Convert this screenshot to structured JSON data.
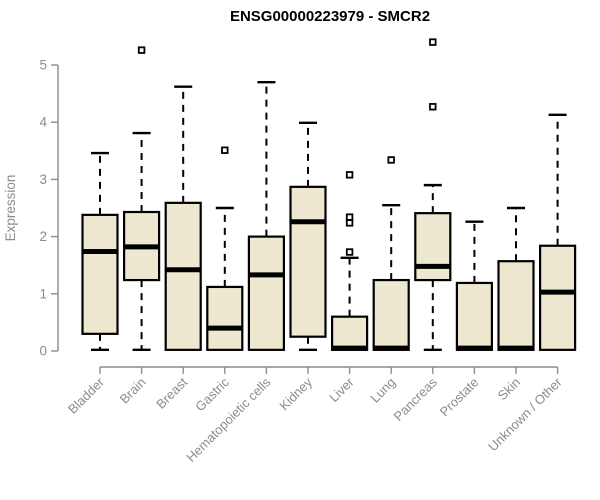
{
  "title": "ENSG00000223979 - SMCR2",
  "chart_data": {
    "type": "boxplot",
    "title": "ENSG00000223979 - SMCR2",
    "xlabel": "",
    "ylabel": "Expression",
    "ylim": [
      0,
      5.45
    ],
    "yticks": [
      0,
      1,
      2,
      3,
      4,
      5
    ],
    "grid": false,
    "legend": false,
    "x_tick_rotation_deg": 45,
    "categories": [
      "Bladder",
      "Brain",
      "Breast",
      "Gastric",
      "Hematopoietic cells",
      "Kidney",
      "Liver",
      "Lung",
      "Pancreas",
      "Prostate",
      "Skin",
      "Unknown / Other"
    ],
    "boxes": [
      {
        "category": "Bladder",
        "min": 0.02,
        "q1": 0.3,
        "median": 1.74,
        "q3": 2.38,
        "max": 3.46,
        "outliers": []
      },
      {
        "category": "Brain",
        "min": 0.02,
        "q1": 1.24,
        "median": 1.82,
        "q3": 2.43,
        "max": 3.81,
        "outliers": [
          5.26
        ]
      },
      {
        "category": "Breast",
        "min": 0.0,
        "q1": 0.02,
        "median": 1.42,
        "q3": 2.59,
        "max": 4.62,
        "outliers": []
      },
      {
        "category": "Gastric",
        "min": 0.0,
        "q1": 0.02,
        "median": 0.4,
        "q3": 1.12,
        "max": 2.5,
        "outliers": [
          3.51
        ]
      },
      {
        "category": "Hematopoietic cells",
        "min": 0.0,
        "q1": 0.02,
        "median": 1.33,
        "q3": 2.0,
        "max": 4.7,
        "outliers": []
      },
      {
        "category": "Kidney",
        "min": 0.02,
        "q1": 0.25,
        "median": 2.26,
        "q3": 2.87,
        "max": 3.99,
        "outliers": []
      },
      {
        "category": "Liver",
        "min": 0.0,
        "q1": 0.02,
        "median": 0.05,
        "q3": 0.6,
        "max": 1.63,
        "outliers": [
          1.73,
          2.24,
          2.34,
          3.08
        ]
      },
      {
        "category": "Lung",
        "min": 0.0,
        "q1": 0.02,
        "median": 0.05,
        "q3": 1.24,
        "max": 2.55,
        "outliers": [
          3.34
        ]
      },
      {
        "category": "Pancreas",
        "min": 0.02,
        "q1": 1.24,
        "median": 1.48,
        "q3": 2.41,
        "max": 2.9,
        "outliers": [
          4.27,
          5.4
        ]
      },
      {
        "category": "Prostate",
        "min": 0.0,
        "q1": 0.02,
        "median": 0.05,
        "q3": 1.19,
        "max": 2.26,
        "outliers": []
      },
      {
        "category": "Skin",
        "min": 0.0,
        "q1": 0.02,
        "median": 0.05,
        "q3": 1.57,
        "max": 2.5,
        "outliers": []
      },
      {
        "category": "Unknown / Other",
        "min": 0.0,
        "q1": 0.02,
        "median": 1.03,
        "q3": 1.84,
        "max": 4.13,
        "outliers": []
      }
    ]
  },
  "colors": {
    "background": "#ffffff",
    "box_fill": "#ede8cf",
    "box_border": "#000000",
    "median_line": "#000000",
    "whisker": "#000000",
    "outlier": "#000000",
    "axis": "#8c8c8c",
    "tick_label": "#8c8c8c",
    "title": "#000000"
  }
}
